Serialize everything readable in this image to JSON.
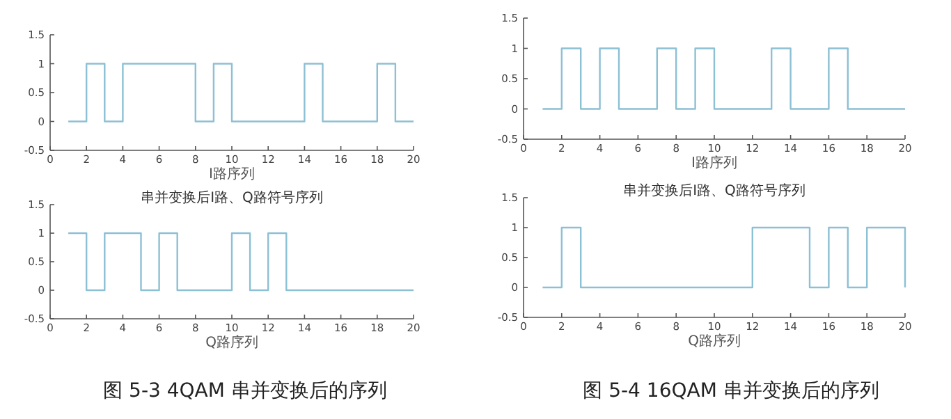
{
  "chart_data": [
    {
      "type": "step",
      "x": [
        1,
        2,
        3,
        4,
        5,
        6,
        7,
        8,
        9,
        10,
        11,
        12,
        13,
        14,
        15,
        16,
        17,
        18,
        19,
        20
      ],
      "values": [
        0,
        1,
        0,
        1,
        1,
        1,
        1,
        0,
        1,
        0,
        0,
        0,
        0,
        1,
        0,
        0,
        0,
        1,
        0,
        0
      ],
      "color": "#8cc0d4",
      "xlim": [
        0,
        20
      ],
      "ylim": [
        -0.5,
        1.5
      ],
      "xticks": [
        0,
        2,
        4,
        6,
        8,
        10,
        12,
        14,
        16,
        18,
        20
      ],
      "yticks": [
        -0.5,
        0,
        0.5,
        1,
        1.5
      ],
      "xlabel": "I路序列"
    },
    {
      "type": "step",
      "x": [
        1,
        2,
        3,
        4,
        5,
        6,
        7,
        8,
        9,
        10,
        11,
        12,
        13,
        14,
        15,
        16,
        17,
        18,
        19,
        20
      ],
      "values": [
        1,
        0,
        1,
        1,
        0,
        1,
        0,
        0,
        0,
        1,
        0,
        1,
        0,
        0,
        0,
        0,
        0,
        0,
        0,
        0
      ],
      "color": "#8cc0d4",
      "xlim": [
        0,
        20
      ],
      "ylim": [
        -0.5,
        1.5
      ],
      "xticks": [
        0,
        2,
        4,
        6,
        8,
        10,
        12,
        14,
        16,
        18,
        20
      ],
      "yticks": [
        -0.5,
        0,
        0.5,
        1,
        1.5
      ],
      "xlabel": "Q路序列",
      "title": "串并变换后I路、Q路符号序列",
      "annotations": [
        "图 5-3 4QAM 串并变换后的序列"
      ]
    },
    {
      "type": "step",
      "x": [
        1,
        2,
        3,
        4,
        5,
        6,
        7,
        8,
        9,
        10,
        11,
        12,
        13,
        14,
        15,
        16,
        17,
        18,
        19,
        20
      ],
      "values": [
        0,
        1,
        0,
        1,
        0,
        0,
        1,
        0,
        1,
        0,
        0,
        0,
        1,
        0,
        0,
        1,
        0,
        0,
        0,
        0
      ],
      "color": "#8cc0d4",
      "xlim": [
        0,
        20
      ],
      "ylim": [
        -0.5,
        1.5
      ],
      "xticks": [
        0,
        2,
        4,
        6,
        8,
        10,
        12,
        14,
        16,
        18,
        20
      ],
      "yticks": [
        -0.5,
        0,
        0.5,
        1,
        1.5
      ],
      "xlabel": "I路序列"
    },
    {
      "type": "step",
      "x": [
        1,
        2,
        3,
        4,
        5,
        6,
        7,
        8,
        9,
        10,
        11,
        12,
        13,
        14,
        15,
        16,
        17,
        18,
        19,
        20
      ],
      "values": [
        0,
        1,
        0,
        0,
        0,
        0,
        0,
        0,
        0,
        0,
        0,
        1,
        1,
        1,
        0,
        1,
        0,
        1,
        1,
        0
      ],
      "color": "#8cc0d4",
      "xlim": [
        0,
        20
      ],
      "ylim": [
        -0.5,
        1.5
      ],
      "xticks": [
        0,
        2,
        4,
        6,
        8,
        10,
        12,
        14,
        16,
        18,
        20
      ],
      "yticks": [
        -0.5,
        0,
        0.5,
        1,
        1.5
      ],
      "xlabel": "Q路序列",
      "title": "串并变换后I路、Q路符号序列",
      "annotations": [
        "图 5-4 16QAM 串并变换后的序列"
      ]
    }
  ]
}
